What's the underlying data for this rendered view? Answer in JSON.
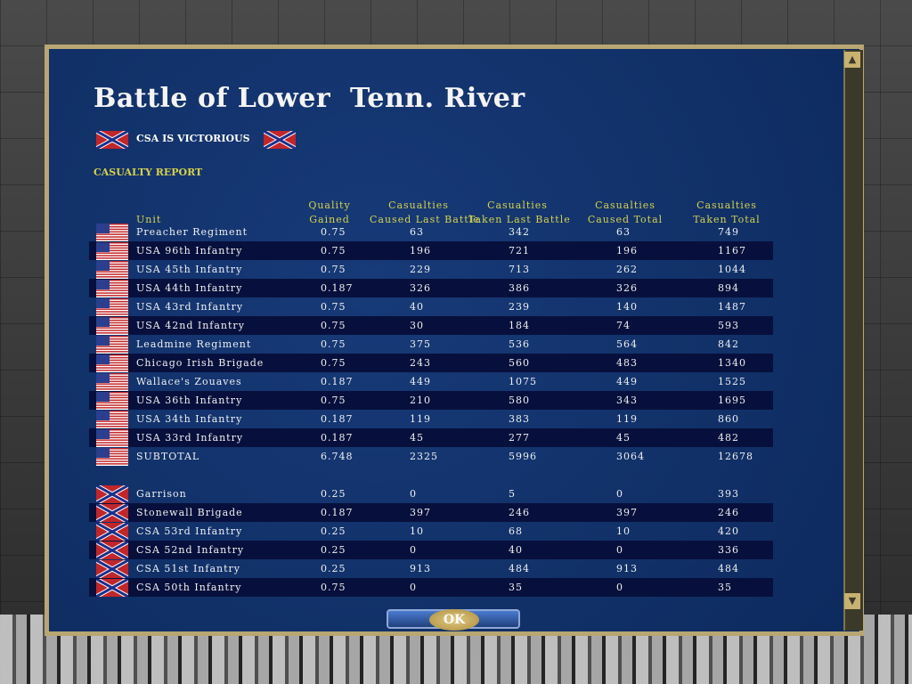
{
  "dialog": {
    "title": "Battle of Lower  Tenn. River",
    "result": "CSA IS VICTORIOUS",
    "section": "CASUALTY REPORT",
    "headers": [
      [
        "",
        "Unit"
      ],
      [
        "Quality",
        "Gained"
      ],
      [
        "Casualties",
        "Caused Last Battle"
      ],
      [
        "Casualties",
        "Taken Last Battle"
      ],
      [
        "Casualties",
        "Caused Total"
      ],
      [
        "Casualties",
        "Taken Total"
      ]
    ],
    "union_rows": [
      [
        "Preacher Regiment",
        0.75,
        63,
        342,
        63,
        749
      ],
      [
        "USA 96th Infantry",
        0.75,
        196,
        721,
        196,
        1167
      ],
      [
        "USA 45th Infantry",
        0.75,
        229,
        713,
        262,
        1044
      ],
      [
        "USA 44th Infantry",
        0.187,
        326,
        386,
        326,
        894
      ],
      [
        "USA 43rd Infantry",
        0.75,
        40,
        239,
        140,
        1487
      ],
      [
        "USA 42nd Infantry",
        0.75,
        30,
        184,
        74,
        593
      ],
      [
        "Leadmine Regiment",
        0.75,
        375,
        536,
        564,
        842
      ],
      [
        "Chicago Irish Brigade",
        0.75,
        243,
        560,
        483,
        1340
      ],
      [
        "Wallace's Zouaves",
        0.187,
        449,
        1075,
        449,
        1525
      ],
      [
        "USA 36th Infantry",
        0.75,
        210,
        580,
        343,
        1695
      ],
      [
        "USA 34th Infantry",
        0.187,
        119,
        383,
        119,
        860
      ],
      [
        "USA 33rd Infantry",
        0.187,
        45,
        277,
        45,
        482
      ],
      [
        "SUBTOTAL",
        6.748,
        2325,
        5996,
        3064,
        12678
      ]
    ],
    "confederate_rows": [
      [
        "Garrison",
        0.25,
        0,
        5,
        0,
        393
      ],
      [
        "Stonewall Brigade",
        0.187,
        397,
        246,
        397,
        246
      ],
      [
        "CSA 53rd Infantry",
        0.25,
        10,
        68,
        10,
        420
      ],
      [
        "CSA 52nd Infantry",
        0.25,
        0,
        40,
        0,
        336
      ],
      [
        "CSA 51st Infantry",
        0.25,
        913,
        484,
        913,
        484
      ],
      [
        "CSA 50th Infantry",
        0.75,
        0,
        35,
        0,
        35
      ]
    ],
    "button": "OK"
  }
}
